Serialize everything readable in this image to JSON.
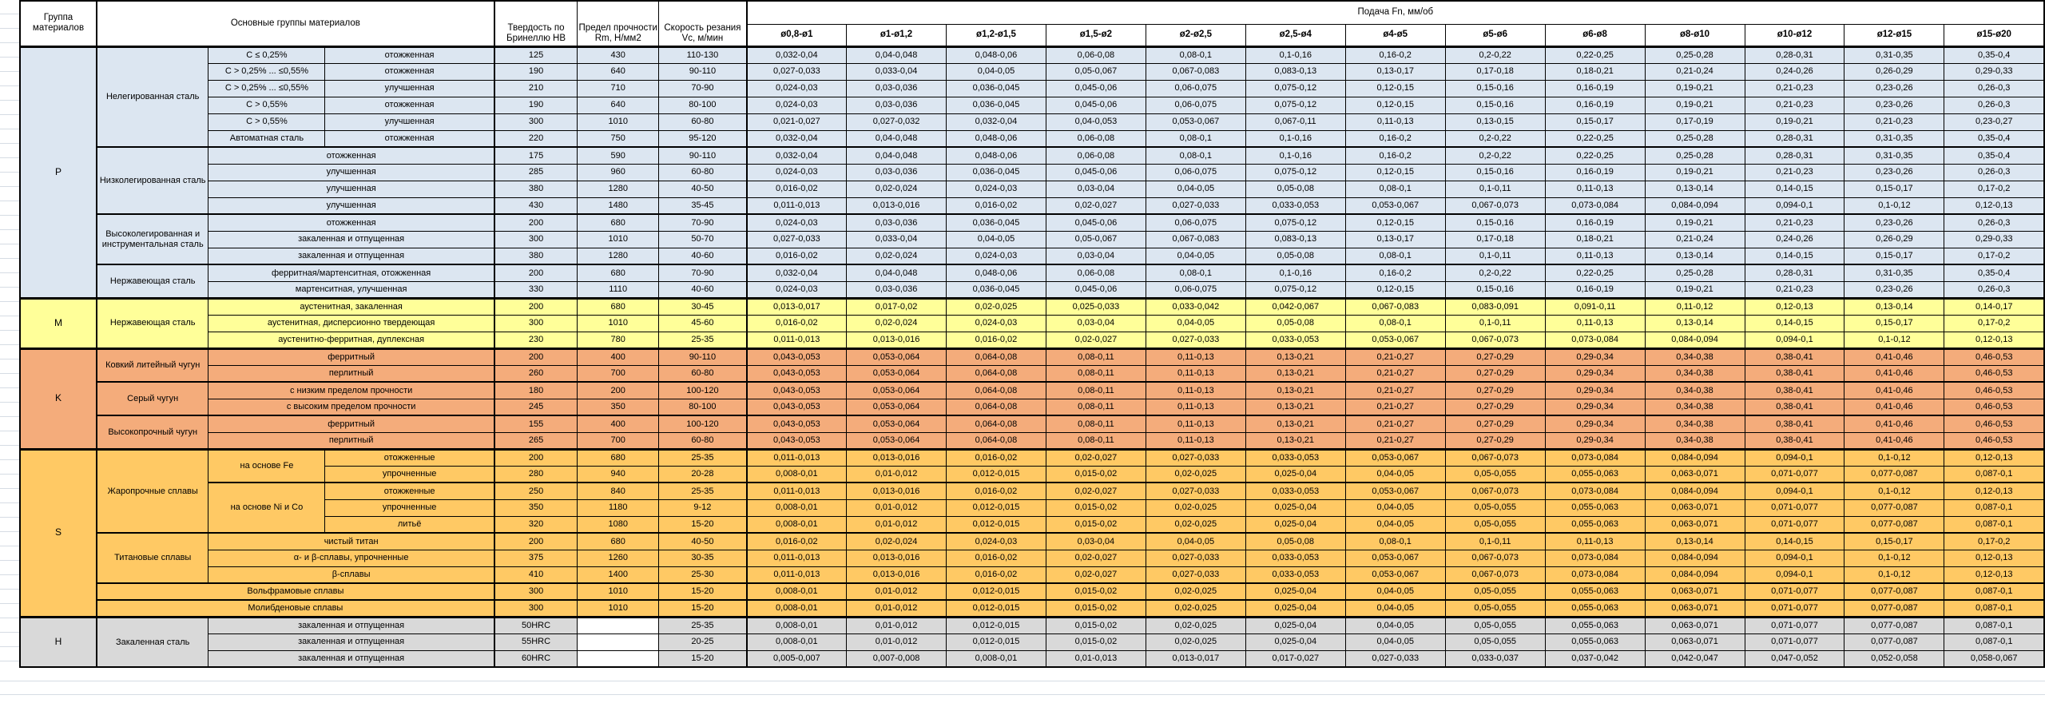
{
  "header": {
    "group_col": "Группа материалов",
    "materials_col": "Основные группы материалов",
    "hardness_col": "Твердость по Бринеллю HB",
    "strength_col": "Предел прочности Rm, Н/мм2",
    "speed_col": "Скорость резания Vc, м/мин",
    "feed_col": "Подача Fn, мм/об",
    "diameter_cols": [
      "ø0,8-ø1",
      "ø1-ø1,2",
      "ø1,2-ø1,5",
      "ø1,5-ø2",
      "ø2-ø2,5",
      "ø2,5-ø4",
      "ø4-ø5",
      "ø5-ø6",
      "ø6-ø8",
      "ø8-ø10",
      "ø10-ø12",
      "ø12-ø15",
      "ø15-ø20"
    ],
    "border_color": "#000000"
  },
  "colors": {
    "P": "#DCE6F1",
    "M": "#FFFF99",
    "K": "#F4AC7B",
    "S": "#FFC964",
    "H": "#D9D9D9"
  },
  "feed_patterns": {
    "A": [
      "0,032-0,04",
      "0,04-0,048",
      "0,048-0,06",
      "0,06-0,08",
      "0,08-0,1",
      "0,1-0,16",
      "0,16-0,2",
      "0,2-0,22",
      "0,22-0,25",
      "0,25-0,28",
      "0,28-0,31",
      "0,31-0,35",
      "0,35-0,4"
    ],
    "B": [
      "0,027-0,033",
      "0,033-0,04",
      "0,04-0,05",
      "0,05-0,067",
      "0,067-0,083",
      "0,083-0,13",
      "0,13-0,17",
      "0,17-0,18",
      "0,18-0,21",
      "0,21-0,24",
      "0,24-0,26",
      "0,26-0,29",
      "0,29-0,33"
    ],
    "C": [
      "0,024-0,03",
      "0,03-0,036",
      "0,036-0,045",
      "0,045-0,06",
      "0,06-0,075",
      "0,075-0,12",
      "0,12-0,15",
      "0,15-0,16",
      "0,16-0,19",
      "0,19-0,21",
      "0,21-0,23",
      "0,23-0,26",
      "0,26-0,3"
    ],
    "D": [
      "0,021-0,027",
      "0,027-0,032",
      "0,032-0,04",
      "0,04-0,053",
      "0,053-0,067",
      "0,067-0,11",
      "0,11-0,13",
      "0,13-0,15",
      "0,15-0,17",
      "0,17-0,19",
      "0,19-0,21",
      "0,21-0,23",
      "0,23-0,27"
    ],
    "E": [
      "0,016-0,02",
      "0,02-0,024",
      "0,024-0,03",
      "0,03-0,04",
      "0,04-0,05",
      "0,05-0,08",
      "0,08-0,1",
      "0,1-0,11",
      "0,11-0,13",
      "0,13-0,14",
      "0,14-0,15",
      "0,15-0,17",
      "0,17-0,2"
    ],
    "F": [
      "0,011-0,013",
      "0,013-0,016",
      "0,016-0,02",
      "0,02-0,027",
      "0,027-0,033",
      "0,033-0,053",
      "0,053-0,067",
      "0,067-0,073",
      "0,073-0,084",
      "0,084-0,094",
      "0,094-0,1",
      "0,1-0,12",
      "0,12-0,13"
    ],
    "G": [
      "0,013-0,017",
      "0,017-0,02",
      "0,02-0,025",
      "0,025-0,033",
      "0,033-0,042",
      "0,042-0,067",
      "0,067-0,083",
      "0,083-0,091",
      "0,091-0,11",
      "0,11-0,12",
      "0,12-0,13",
      "0,13-0,14",
      "0,14-0,17"
    ],
    "KP": [
      "0,043-0,053",
      "0,053-0,064",
      "0,064-0,08",
      "0,08-0,11",
      "0,11-0,13",
      "0,13-0,21",
      "0,21-0,27",
      "0,27-0,29",
      "0,29-0,34",
      "0,34-0,38",
      "0,38-0,41",
      "0,41-0,46",
      "0,46-0,53"
    ],
    "HP": [
      "0,008-0,01",
      "0,01-0,012",
      "0,012-0,015",
      "0,015-0,02",
      "0,02-0,025",
      "0,025-0,04",
      "0,04-0,05",
      "0,05-0,055",
      "0,055-0,063",
      "0,063-0,071",
      "0,071-0,077",
      "0,077-0,087",
      "0,087-0,1"
    ],
    "Z": [
      "0,005-0,007",
      "0,007-0,008",
      "0,008-0,01",
      "0,01-0,013",
      "0,013-0,017",
      "0,017-0,027",
      "0,027-0,033",
      "0,033-0,037",
      "0,037-0,042",
      "0,042-0,047",
      "0,047-0,052",
      "0,052-0,058",
      "0,058-0,067"
    ]
  },
  "groups": [
    {
      "code": "P",
      "families": [
        {
          "name": "Нелегированная сталь",
          "rows": [
            {
              "sub": "C ≤ 0,25%",
              "treat": "отожженная",
              "hb": "125",
              "rm": "430",
              "vc": "110-130",
              "feeds": "A"
            },
            {
              "sub": "C > 0,25% ... ≤0,55%",
              "treat": "отожженная",
              "hb": "190",
              "rm": "640",
              "vc": "90-110",
              "feeds": "B"
            },
            {
              "sub": "C > 0,25% ... ≤0,55%",
              "treat": "улучшенная",
              "hb": "210",
              "rm": "710",
              "vc": "70-90",
              "feeds": "C"
            },
            {
              "sub": "C > 0,55%",
              "treat": "отожженная",
              "hb": "190",
              "rm": "640",
              "vc": "80-100",
              "feeds": "C"
            },
            {
              "sub": "C > 0,55%",
              "treat": "улучшенная",
              "hb": "300",
              "rm": "1010",
              "vc": "60-80",
              "feeds": "D"
            },
            {
              "sub": "Автоматная сталь",
              "treat": "отожженная",
              "hb": "220",
              "rm": "750",
              "vc": "95-120",
              "feeds": "A"
            }
          ]
        },
        {
          "name": "Низколегированная сталь",
          "rows": [
            {
              "label2": "отожженная",
              "hb": "175",
              "rm": "590",
              "vc": "90-110",
              "feeds": "A"
            },
            {
              "label2": "улучшенная",
              "hb": "285",
              "rm": "960",
              "vc": "60-80",
              "feeds": "C"
            },
            {
              "label2": "улучшенная",
              "hb": "380",
              "rm": "1280",
              "vc": "40-50",
              "feeds": "E"
            },
            {
              "label2": "улучшенная",
              "hb": "430",
              "rm": "1480",
              "vc": "35-45",
              "feeds": "F"
            }
          ]
        },
        {
          "name": "Высоколегированная и инструментальная сталь",
          "rows": [
            {
              "label2": "отожженная",
              "hb": "200",
              "rm": "680",
              "vc": "70-90",
              "feeds": "C"
            },
            {
              "label2": "закаленная и отпущенная",
              "hb": "300",
              "rm": "1010",
              "vc": "50-70",
              "feeds": "B"
            },
            {
              "label2": "закаленная и отпущенная",
              "hb": "380",
              "rm": "1280",
              "vc": "40-60",
              "feeds": "E"
            }
          ]
        },
        {
          "name": "Нержавеющая сталь",
          "rows": [
            {
              "label2": "ферритная/мартенситная, отожженная",
              "hb": "200",
              "rm": "680",
              "vc": "70-90",
              "feeds": "A"
            },
            {
              "label2": "мартенситная, улучшенная",
              "hb": "330",
              "rm": "1110",
              "vc": "40-60",
              "feeds": "C"
            }
          ]
        }
      ]
    },
    {
      "code": "M",
      "families": [
        {
          "name": "Нержавеющая сталь",
          "rows": [
            {
              "label2": "аустенитная, закаленная",
              "hb": "200",
              "rm": "680",
              "vc": "30-45",
              "feeds": "G"
            },
            {
              "label2": "аустенитная, дисперсионно твердеющая",
              "hb": "300",
              "rm": "1010",
              "vc": "45-60",
              "feeds": "E"
            },
            {
              "label2": "аустенитно-ферритная, дуплексная",
              "hb": "230",
              "rm": "780",
              "vc": "25-35",
              "feeds": "F"
            }
          ]
        }
      ]
    },
    {
      "code": "K",
      "families": [
        {
          "name": "Ковкий литейный чугун",
          "rows": [
            {
              "label2": "ферритный",
              "hb": "200",
              "rm": "400",
              "vc": "90-110",
              "feeds": "KP"
            },
            {
              "label2": "перлитный",
              "hb": "260",
              "rm": "700",
              "vc": "60-80",
              "feeds": "KP"
            }
          ]
        },
        {
          "name": "Серый чугун",
          "rows": [
            {
              "label2": "с низким пределом прочности",
              "hb": "180",
              "rm": "200",
              "vc": "100-120",
              "feeds": "KP"
            },
            {
              "label2": "с высоким пределом прочности",
              "hb": "245",
              "rm": "350",
              "vc": "80-100",
              "feeds": "KP"
            }
          ]
        },
        {
          "name": "Высокопрочный чугун",
          "rows": [
            {
              "label2": "ферритный",
              "hb": "155",
              "rm": "400",
              "vc": "100-120",
              "feeds": "KP"
            },
            {
              "label2": "перлитный",
              "hb": "265",
              "rm": "700",
              "vc": "60-80",
              "feeds": "KP"
            }
          ]
        }
      ]
    },
    {
      "code": "S",
      "families": [
        {
          "name": "Жаропрочные сплавы",
          "rows": [
            {
              "sub": {
                "t": "на основе Fe",
                "rs": 2
              },
              "treat": "отожженные",
              "hb": "200",
              "rm": "680",
              "vc": "25-35",
              "feeds": "F"
            },
            {
              "treat": "упрочненные",
              "hb": "280",
              "rm": "940",
              "vc": "20-28",
              "feeds": "HP"
            },
            {
              "sub": {
                "t": "на основе Ni и Co",
                "rs": 3
              },
              "treat": "отожженные",
              "hb": "250",
              "rm": "840",
              "vc": "25-35",
              "feeds": "F",
              "sep": true
            },
            {
              "treat": "упрочненные",
              "hb": "350",
              "rm": "1180",
              "vc": "9-12",
              "feeds": "HP"
            },
            {
              "treat": "литьё",
              "hb": "320",
              "rm": "1080",
              "vc": "15-20",
              "feeds": "HP"
            }
          ]
        },
        {
          "name": "Титановые сплавы",
          "rows": [
            {
              "label2": "чистый титан",
              "hb": "200",
              "rm": "680",
              "vc": "40-50",
              "feeds": "E"
            },
            {
              "label2": "α- и β-сплавы, упрочненные",
              "hb": "375",
              "rm": "1260",
              "vc": "30-35",
              "feeds": "F"
            },
            {
              "label2": "β-сплавы",
              "hb": "410",
              "rm": "1400",
              "vc": "25-30",
              "feeds": "F"
            }
          ]
        },
        {
          "name": "Вольфрамовые сплавы",
          "cs": 3,
          "rows": [
            {
              "hb": "300",
              "rm": "1010",
              "vc": "15-20",
              "feeds": "HP"
            }
          ]
        },
        {
          "name": "Молибденовые сплавы",
          "cs": 3,
          "rows": [
            {
              "hb": "300",
              "rm": "1010",
              "vc": "15-20",
              "feeds": "HP"
            }
          ]
        }
      ]
    },
    {
      "code": "H",
      "families": [
        {
          "name": "Закаленная сталь",
          "rows": [
            {
              "label2": "закаленная и отпущенная",
              "hb": "50HRC",
              "rm": "",
              "vc": "25-35",
              "feeds": "HP"
            },
            {
              "label2": "закаленная и отпущенная",
              "hb": "55HRC",
              "rm": "",
              "vc": "20-25",
              "feeds": "HP"
            },
            {
              "label2": "закаленная и отпущенная",
              "hb": "60HRC",
              "rm": "",
              "vc": "15-20",
              "feeds": "Z"
            }
          ]
        }
      ]
    }
  ]
}
